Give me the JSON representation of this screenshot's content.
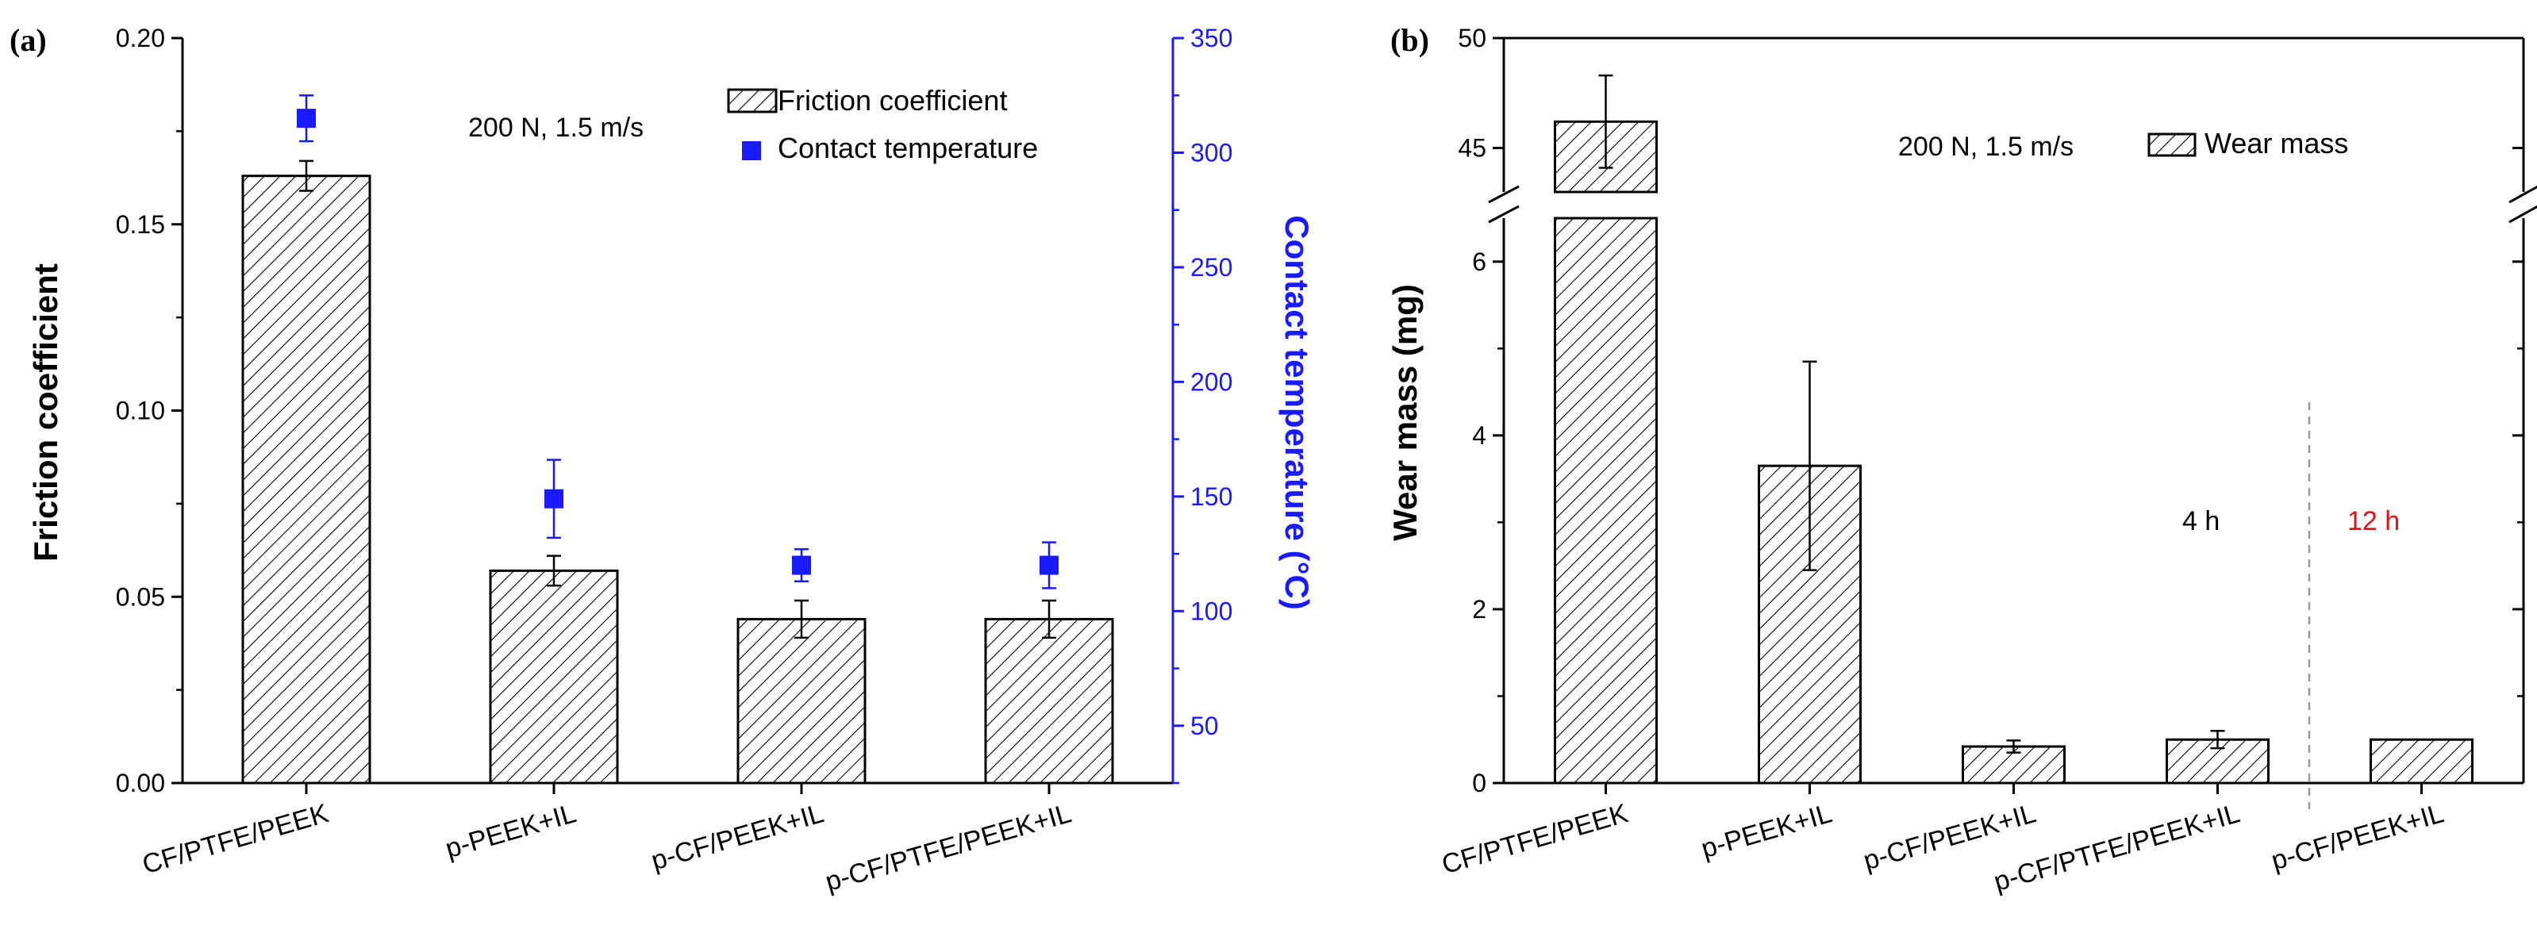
{
  "chart_data": [
    {
      "panel_label": "(a)",
      "type": "bar",
      "categories": [
        "CF/PTFE/PEEK",
        "p-PEEK+IL",
        "p-CF/PEEK+IL",
        "p-CF/PTFE/PEEK+IL"
      ],
      "series": [
        {
          "name": "Friction coefficient",
          "type": "bar",
          "axis": "left",
          "values": [
            0.163,
            0.057,
            0.044,
            0.044
          ],
          "errors": [
            0.004,
            0.004,
            0.005,
            0.005
          ]
        },
        {
          "name": "Contact temperature",
          "type": "scatter",
          "axis": "right",
          "marker": "square",
          "color": "#1a1aff",
          "values": [
            315,
            149,
            120,
            120
          ],
          "errors": [
            10,
            17,
            7,
            10
          ]
        }
      ],
      "ylabel": "Friction coefficient",
      "ylim": [
        0,
        0.2
      ],
      "yticks": [
        "0.00",
        "0.05",
        "0.10",
        "0.15",
        "0.20"
      ],
      "y2label": "Contact temperature (°C)",
      "y2lim": [
        25,
        350
      ],
      "y2ticks": [
        "50",
        "100",
        "150",
        "200",
        "250",
        "300",
        "350"
      ],
      "annotation": "200 N, 1.5 m/s",
      "legend": [
        "Friction coefficient",
        "Contact temperature"
      ],
      "legend_position": "top-right",
      "colors": {
        "bars": "#ffffff",
        "hatch": "#000000",
        "temperature": "#1a1aff"
      }
    },
    {
      "panel_label": "(b)",
      "type": "bar",
      "categories": [
        "CF/PTFE/PEEK",
        "p-PEEK+IL",
        "p-CF/PEEK+IL",
        "p-CF/PTFE/PEEK+IL",
        "p-CF/PEEK+IL"
      ],
      "series": [
        {
          "name": "Wear mass",
          "values": [
            46.2,
            3.65,
            0.42,
            0.5,
            0.5
          ],
          "errors": [
            2.1,
            1.2,
            0.07,
            0.1,
            0.0
          ]
        }
      ],
      "ylabel": "Wear mass (mg)",
      "ylim_lower": [
        0,
        6.5
      ],
      "ylim_upper": [
        43,
        50
      ],
      "axis_break": true,
      "yticks_lower": [
        "0",
        "2",
        "4",
        "6"
      ],
      "yticks_upper": [
        "45",
        "50"
      ],
      "annotation": "200 N, 1.5 m/s",
      "legend": [
        "Wear mass"
      ],
      "legend_position": "top-right",
      "group_labels": [
        "4 h",
        "12 h"
      ],
      "colors": {
        "bars": "#ffffff",
        "hatch": "#000000",
        "twelve_h_label": "#e01010",
        "divider": "#999999"
      }
    }
  ]
}
